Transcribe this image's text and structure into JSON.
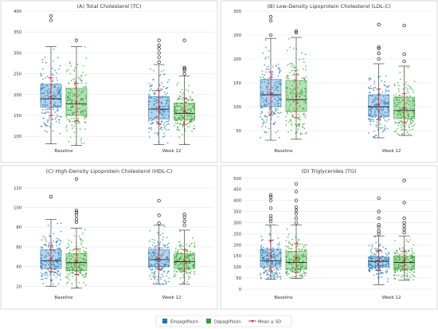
{
  "colors": {
    "empagliflozin": "#1f77b4",
    "empagliflozin_box": "#a6cde8",
    "dapagliflozin": "#2ca02c",
    "dapagliflozin_box": "#a7dcaa",
    "mean": "#d62728",
    "grid": "#e6e6e6",
    "frame": "#cfcfcf"
  },
  "legend": {
    "items": [
      {
        "label": "Empagliflozin",
        "color": "#1f77b4",
        "kind": "square"
      },
      {
        "label": "Dapagliflozin",
        "color": "#2ca02c",
        "kind": "square"
      },
      {
        "label": "Mean ± SD",
        "color": "#d62728",
        "kind": "line"
      }
    ]
  },
  "chart_data": [
    {
      "type": "box",
      "title": "(A) Total Cholesterol (TC)",
      "categories": [
        "Baseline",
        "Week 12"
      ],
      "ylim": [
        85,
        400
      ],
      "yticks": [
        100,
        150,
        200,
        250,
        300,
        350,
        400
      ],
      "grid": true,
      "series": [
        {
          "name": "Empagliflozin",
          "stats": [
            {
              "min": 82,
              "q1": 170,
              "median": 190,
              "q3": 225,
              "max": 315,
              "mean": 195,
              "sd": 45,
              "outliers": [
                378,
                388
              ]
            },
            {
              "min": 80,
              "q1": 142,
              "median": 165,
              "q3": 195,
              "max": 272,
              "mean": 170,
              "sd": 40,
              "outliers": [
                278,
                290,
                300,
                310,
                318,
                330
              ]
            }
          ]
        },
        {
          "name": "Dapagliflozin",
          "stats": [
            {
              "min": 78,
              "q1": 150,
              "median": 178,
              "q3": 215,
              "max": 315,
              "mean": 182,
              "sd": 45,
              "outliers": [
                330
              ]
            },
            {
              "min": 80,
              "q1": 140,
              "median": 155,
              "q3": 180,
              "max": 245,
              "mean": 160,
              "sd": 32,
              "outliers": [
                250,
                258,
                262,
                265,
                330
              ]
            }
          ]
        }
      ]
    },
    {
      "type": "box",
      "title": "(B) Low-Density Lipoprotein Cholesterol (LDL-C)",
      "categories": [
        "Baseline",
        "Week 12"
      ],
      "ylim": [
        25,
        300
      ],
      "yticks": [
        50,
        100,
        150,
        200,
        250,
        300
      ],
      "grid": true,
      "series": [
        {
          "name": "Empagliflozin",
          "stats": [
            {
              "min": 30,
              "q1": 100,
              "median": 125,
              "q3": 157,
              "max": 243,
              "mean": 128,
              "sd": 45,
              "outliers": [
                250,
                280,
                288
              ]
            },
            {
              "min": 35,
              "q1": 80,
              "median": 100,
              "q3": 125,
              "max": 190,
              "mean": 105,
              "sd": 32,
              "outliers": [
                200,
                212,
                222,
                225,
                272
              ]
            }
          ]
        },
        {
          "name": "Dapagliflozin",
          "stats": [
            {
              "min": 32,
              "q1": 90,
              "median": 115,
              "q3": 155,
              "max": 245,
              "mean": 122,
              "sd": 45,
              "outliers": [
                255,
                258
              ]
            },
            {
              "min": 40,
              "q1": 75,
              "median": 92,
              "q3": 120,
              "max": 185,
              "mean": 98,
              "sd": 30,
              "outliers": [
                195,
                210,
                270
              ]
            }
          ]
        }
      ]
    },
    {
      "type": "box",
      "title": "(C) High-Density Lipoprotein Cholesterol (HDL-C)",
      "categories": [
        "Baseline",
        "Week 12"
      ],
      "ylim": [
        17,
        132
      ],
      "yticks": [
        20,
        40,
        60,
        80,
        100,
        120
      ],
      "grid": true,
      "series": [
        {
          "name": "Empagliflozin",
          "stats": [
            {
              "min": 20,
              "q1": 38,
              "median": 46,
              "q3": 57,
              "max": 88,
              "mean": 48,
              "sd": 13,
              "outliers": [
                111
              ]
            },
            {
              "min": 22,
              "q1": 40,
              "median": 47,
              "q3": 57,
              "max": 82,
              "mean": 48,
              "sd": 11,
              "outliers": [
                84,
                92,
                107
              ]
            }
          ]
        },
        {
          "name": "Dapagliflozin",
          "stats": [
            {
              "min": 18,
              "q1": 36,
              "median": 44,
              "q3": 53,
              "max": 79,
              "mean": 45,
              "sd": 13,
              "outliers": [
                85,
                88,
                92,
                95,
                97,
                129
              ]
            },
            {
              "min": 22,
              "q1": 38,
              "median": 45,
              "q3": 53,
              "max": 77,
              "mean": 46,
              "sd": 11,
              "outliers": [
                82,
                86,
                90,
                93
              ]
            }
          ]
        }
      ]
    },
    {
      "type": "box",
      "title": "(D) Triglycerides (TG)",
      "categories": [
        "Baseline",
        "Week 12"
      ],
      "ylim": [
        0,
        510
      ],
      "yticks": [
        0,
        50,
        100,
        150,
        200,
        250,
        300,
        350,
        400,
        450,
        500
      ],
      "grid": true,
      "series": [
        {
          "name": "Empagliflozin",
          "stats": [
            {
              "min": 45,
              "q1": 100,
              "median": 128,
              "q3": 180,
              "max": 290,
              "mean": 150,
              "sd": 70,
              "outliers": [
                305,
                318,
                330,
                365,
                400,
                415,
                425
              ]
            },
            {
              "min": 20,
              "q1": 100,
              "median": 125,
              "q3": 145,
              "max": 240,
              "mean": 130,
              "sd": 45,
              "outliers": [
                250,
                262,
                280,
                290,
                320,
                350,
                410
              ]
            }
          ]
        },
        {
          "name": "Dapagliflozin",
          "stats": [
            {
              "min": 48,
              "q1": 90,
              "median": 120,
              "q3": 170,
              "max": 290,
              "mean": 140,
              "sd": 65,
              "outliers": [
                300,
                320,
                340,
                355,
                370,
                400,
                440,
                475
              ]
            },
            {
              "min": 40,
              "q1": 90,
              "median": 120,
              "q3": 150,
              "max": 240,
              "mean": 128,
              "sd": 42,
              "outliers": [
                255,
                270,
                285,
                300,
                320,
                390,
                490
              ]
            }
          ]
        }
      ]
    }
  ]
}
